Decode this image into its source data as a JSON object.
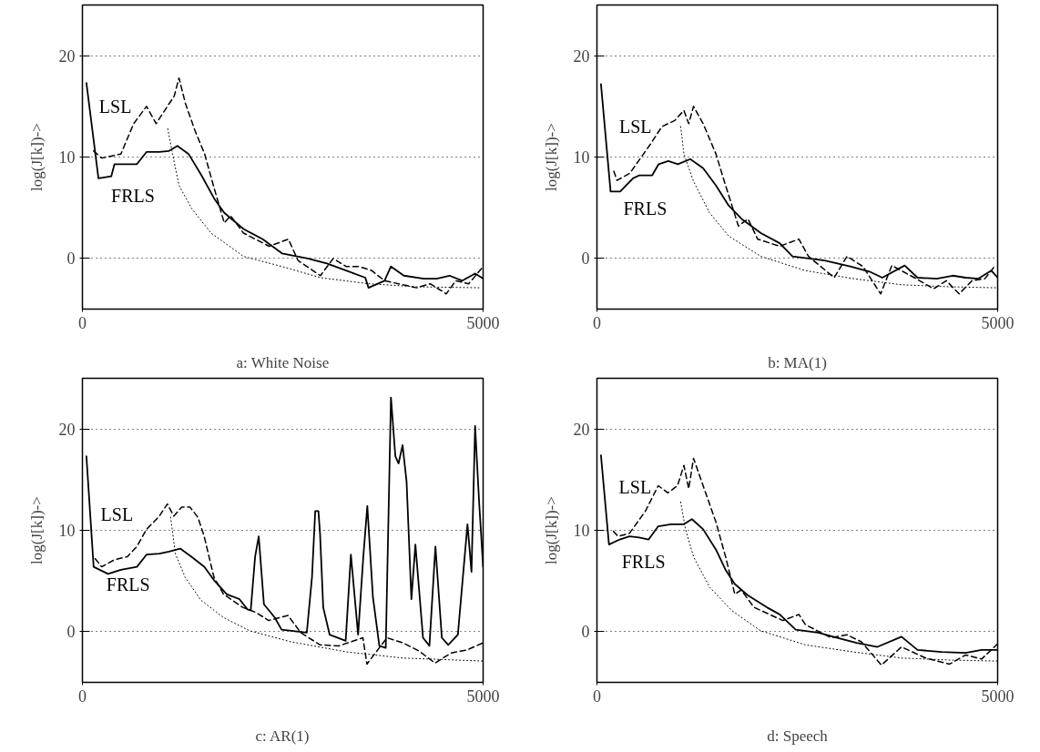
{
  "chart_data": [
    {
      "type": "line",
      "xlabel": "a: White Noise",
      "ylabel": "log(J[k])->",
      "xlim": [
        0,
        5000
      ],
      "ylim": [
        -5,
        25
      ],
      "xticks": [
        0,
        5000
      ],
      "yticks": [
        0,
        10,
        20
      ],
      "grid": "y",
      "legend": false,
      "series": [
        {
          "name": "FRLS",
          "color": "#000000",
          "line_style": "solid",
          "x": [
            50,
            200,
            360,
            400,
            680,
            800,
            960,
            1080,
            1185,
            1325,
            1485,
            1645,
            1770,
            2010,
            2250,
            2490,
            2810,
            3050,
            3290,
            3530,
            3570,
            3770,
            3850,
            4010,
            4260,
            4420,
            4580,
            4740,
            4900,
            5000
          ],
          "values": [
            17.3,
            7.9,
            8.1,
            9.3,
            9.3,
            10.5,
            10.5,
            10.6,
            11.1,
            10.3,
            8.2,
            5.9,
            4.5,
            2.9,
            1.9,
            0.5,
            0,
            -0.5,
            -1.2,
            -1.9,
            -2.9,
            -2.2,
            -0.8,
            -1.7,
            -2.0,
            -2.0,
            -1.7,
            -2.2,
            -1.5,
            -2.0
          ]
        },
        {
          "name": "LSL",
          "color": "#000000",
          "line_style": "dashed",
          "x": [
            140,
            240,
            480,
            640,
            800,
            920,
            1085,
            1145,
            1205,
            1285,
            1405,
            1525,
            1645,
            1770,
            1850,
            2010,
            2330,
            2570,
            2690,
            2970,
            3130,
            3290,
            3450,
            3610,
            3770,
            4170,
            4340,
            4540,
            4660,
            4820,
            4980
          ],
          "values": [
            10.6,
            9.9,
            10.3,
            13.3,
            15.0,
            13.3,
            15.3,
            16,
            17.8,
            15.3,
            12.6,
            10.3,
            6.9,
            3.5,
            4.2,
            2.5,
            1.2,
            1.9,
            -0.2,
            -1.7,
            0,
            -0.8,
            -0.8,
            -1.2,
            -2.2,
            -2.9,
            -2.5,
            -3.5,
            -2.2,
            -2.5,
            -1.0
          ]
        },
        {
          "color": "#000000",
          "line_style": "dotted",
          "x": [
            1065,
            1125,
            1205,
            1365,
            1605,
            2010,
            2490,
            2970,
            3570,
            4170,
            4980
          ],
          "values": [
            12.8,
            10.3,
            7.2,
            4.9,
            2.5,
            0.2,
            -0.8,
            -1.9,
            -2.5,
            -2.8,
            -2.9
          ]
        }
      ]
    },
    {
      "type": "line",
      "xlabel": "b: MA(1)",
      "ylabel": "log(J[k])->",
      "xlim": [
        0,
        5000
      ],
      "ylim": [
        -5,
        25
      ],
      "xticks": [
        0,
        5000
      ],
      "yticks": [
        0,
        10,
        20
      ],
      "grid": "y",
      "legend": false,
      "series": [
        {
          "name": "FRLS",
          "color": "#000000",
          "line_style": "solid",
          "x": [
            50,
            170,
            290,
            450,
            530,
            690,
            770,
            890,
            1010,
            1165,
            1325,
            1485,
            1645,
            1805,
            2045,
            2280,
            2440,
            2840,
            3160,
            3400,
            3560,
            3840,
            4000,
            4240,
            4440,
            4600,
            4760,
            4920,
            5000
          ],
          "values": [
            17.2,
            6.6,
            6.6,
            7.9,
            8.2,
            8.2,
            9.3,
            9.6,
            9.3,
            9.8,
            8.9,
            7.2,
            5.2,
            3.9,
            2.5,
            1.5,
            0.2,
            -0.2,
            -0.8,
            -1.3,
            -1.9,
            -0.7,
            -1.9,
            -2.0,
            -1.7,
            -1.9,
            -2.0,
            -1.2,
            -1.9
          ]
        },
        {
          "name": "LSL",
          "color": "#000000",
          "line_style": "dashed",
          "x": [
            210,
            250,
            410,
            670,
            810,
            970,
            1085,
            1145,
            1205,
            1325,
            1485,
            1605,
            1765,
            1885,
            2005,
            2280,
            2520,
            2640,
            2960,
            3120,
            3320,
            3540,
            3680,
            3960,
            4200,
            4360,
            4520,
            4680,
            4840,
            4960
          ],
          "values": [
            8.6,
            7.7,
            8.4,
            11.3,
            13.0,
            13.6,
            14.6,
            13.3,
            15.0,
            13.3,
            10.3,
            7.2,
            3.2,
            3.9,
            1.9,
            1.2,
            1.9,
            0.2,
            -1.9,
            0.2,
            -0.8,
            -3.5,
            -0.7,
            -1.9,
            -3.0,
            -2.2,
            -3.5,
            -2.2,
            -2.0,
            -0.8
          ]
        },
        {
          "color": "#000000",
          "line_style": "dotted",
          "x": [
            1045,
            1085,
            1205,
            1405,
            1645,
            2045,
            2600,
            3200,
            3800,
            4400,
            5000
          ],
          "values": [
            13.0,
            10.3,
            7.6,
            4.5,
            2.2,
            0.2,
            -1.2,
            -2.0,
            -2.6,
            -2.8,
            -2.9
          ]
        }
      ]
    },
    {
      "type": "line",
      "xlabel": "c: AR(1)",
      "ylabel": "log(J[k])->",
      "xlim": [
        0,
        5000
      ],
      "ylim": [
        -5,
        25
      ],
      "xticks": [
        0,
        5000
      ],
      "yticks": [
        0,
        10,
        20
      ],
      "grid": "y",
      "legend": false,
      "series": [
        {
          "name": "FRLS",
          "color": "#000000",
          "line_style": "solid",
          "x": [
            50,
            140,
            320,
            480,
            680,
            800,
            960,
            1080,
            1220,
            1360,
            1520,
            1640,
            1800,
            1960,
            2060,
            2100,
            2155,
            2200,
            2265,
            2400,
            2485,
            2800,
            2865,
            2905,
            2945,
            2965,
            3005,
            3085,
            3285,
            3350,
            3440,
            3505,
            3555,
            3625,
            3705,
            3785,
            3850,
            3905,
            3945,
            3995,
            4045,
            4105,
            4155,
            4250,
            4330,
            4405,
            4485,
            4565,
            4685,
            4805,
            4855,
            4900,
            4950,
            5000
          ],
          "values": [
            17.3,
            6.4,
            5.7,
            6.1,
            6.4,
            7.6,
            7.7,
            7.9,
            8.2,
            7.4,
            6.4,
            5.1,
            3.7,
            3.2,
            2.2,
            2.1,
            7.4,
            9.4,
            2.7,
            1.4,
            0.2,
            -0.1,
            5.4,
            11.9,
            11.9,
            9.7,
            2.4,
            -0.3,
            -0.9,
            7.6,
            -0.3,
            7.4,
            12.4,
            3.4,
            -1.4,
            -1.6,
            23.1,
            17.3,
            16.6,
            18.4,
            14.8,
            3.2,
            8.6,
            -0.6,
            -1.4,
            8.4,
            -0.6,
            -1.3,
            -0.3,
            10.6,
            5.9,
            20.3,
            12.8,
            6.4
          ]
        },
        {
          "name": "LSL",
          "color": "#000000",
          "line_style": "dashed",
          "x": [
            160,
            240,
            400,
            560,
            680,
            800,
            960,
            1060,
            1140,
            1240,
            1340,
            1440,
            1520,
            1640,
            1760,
            2000,
            2165,
            2325,
            2565,
            2725,
            2965,
            3200,
            3500,
            3550,
            3800,
            4000,
            4200,
            4400,
            4600,
            4800,
            5000
          ],
          "values": [
            7.2,
            6.4,
            7.1,
            7.4,
            8.4,
            10.1,
            11.4,
            12.6,
            11.4,
            12.3,
            12.3,
            11.3,
            9.4,
            5.4,
            3.7,
            2.4,
            1.9,
            1.1,
            1.6,
            -0.1,
            -1.3,
            -1.4,
            -0.6,
            -3.2,
            -0.6,
            -1.1,
            -1.9,
            -3.1,
            -2.1,
            -1.8,
            -1.1
          ]
        },
        {
          "color": "#000000",
          "line_style": "dotted",
          "x": [
            1100,
            1160,
            1280,
            1480,
            1760,
            2085,
            2600,
            3300,
            4000,
            5000
          ],
          "values": [
            11.3,
            7.7,
            5.4,
            3.1,
            1.4,
            0.1,
            -1.0,
            -2.0,
            -2.6,
            -2.9
          ]
        }
      ]
    },
    {
      "type": "line",
      "xlabel": "d: Speech",
      "ylabel": "log(J[k])->",
      "xlim": [
        0,
        5000
      ],
      "ylim": [
        -5,
        25
      ],
      "xticks": [
        0,
        5000
      ],
      "yticks": [
        0,
        10,
        20
      ],
      "grid": "y",
      "legend": false,
      "series": [
        {
          "name": "FRLS",
          "color": "#000000",
          "line_style": "solid",
          "x": [
            50,
            150,
            285,
            405,
            525,
            645,
            765,
            925,
            1085,
            1185,
            1325,
            1485,
            1605,
            1720,
            1880,
            2120,
            2280,
            2480,
            2760,
            3000,
            3240,
            3500,
            3800,
            4000,
            4300,
            4600,
            4800,
            5000
          ],
          "values": [
            17.4,
            8.6,
            9.1,
            9.4,
            9.3,
            9.1,
            10.4,
            10.6,
            10.6,
            11.1,
            10.1,
            8.1,
            6.1,
            4.7,
            3.6,
            2.4,
            1.7,
            0.2,
            -0.1,
            -0.6,
            -1.1,
            -1.5,
            -0.5,
            -1.8,
            -2.0,
            -2.1,
            -1.8,
            -1.8
          ]
        },
        {
          "name": "LSL",
          "color": "#000000",
          "line_style": "dashed",
          "x": [
            205,
            265,
            405,
            605,
            765,
            885,
            1005,
            1085,
            1145,
            1205,
            1325,
            1485,
            1605,
            1720,
            1800,
            1960,
            2320,
            2520,
            2600,
            2920,
            3120,
            3300,
            3550,
            3800,
            4100,
            4400,
            4600,
            4800,
            5000
          ],
          "values": [
            9.9,
            9.4,
            9.7,
            11.9,
            14.4,
            13.7,
            14.4,
            16.4,
            14.1,
            17.1,
            14.4,
            10.8,
            7.4,
            3.7,
            4.1,
            2.4,
            1.1,
            1.7,
            0.7,
            -0.6,
            -0.3,
            -1.0,
            -3.3,
            -1.5,
            -2.6,
            -3.2,
            -2.3,
            -2.7,
            -1.2
          ]
        },
        {
          "color": "#000000",
          "line_style": "dotted",
          "x": [
            1045,
            1105,
            1205,
            1405,
            1680,
            2040,
            2600,
            3200,
            3800,
            4400,
            5000
          ],
          "values": [
            12.8,
            10.1,
            7.4,
            4.4,
            2.1,
            0.1,
            -1.3,
            -2.0,
            -2.6,
            -2.8,
            -2.9
          ]
        }
      ]
    }
  ]
}
